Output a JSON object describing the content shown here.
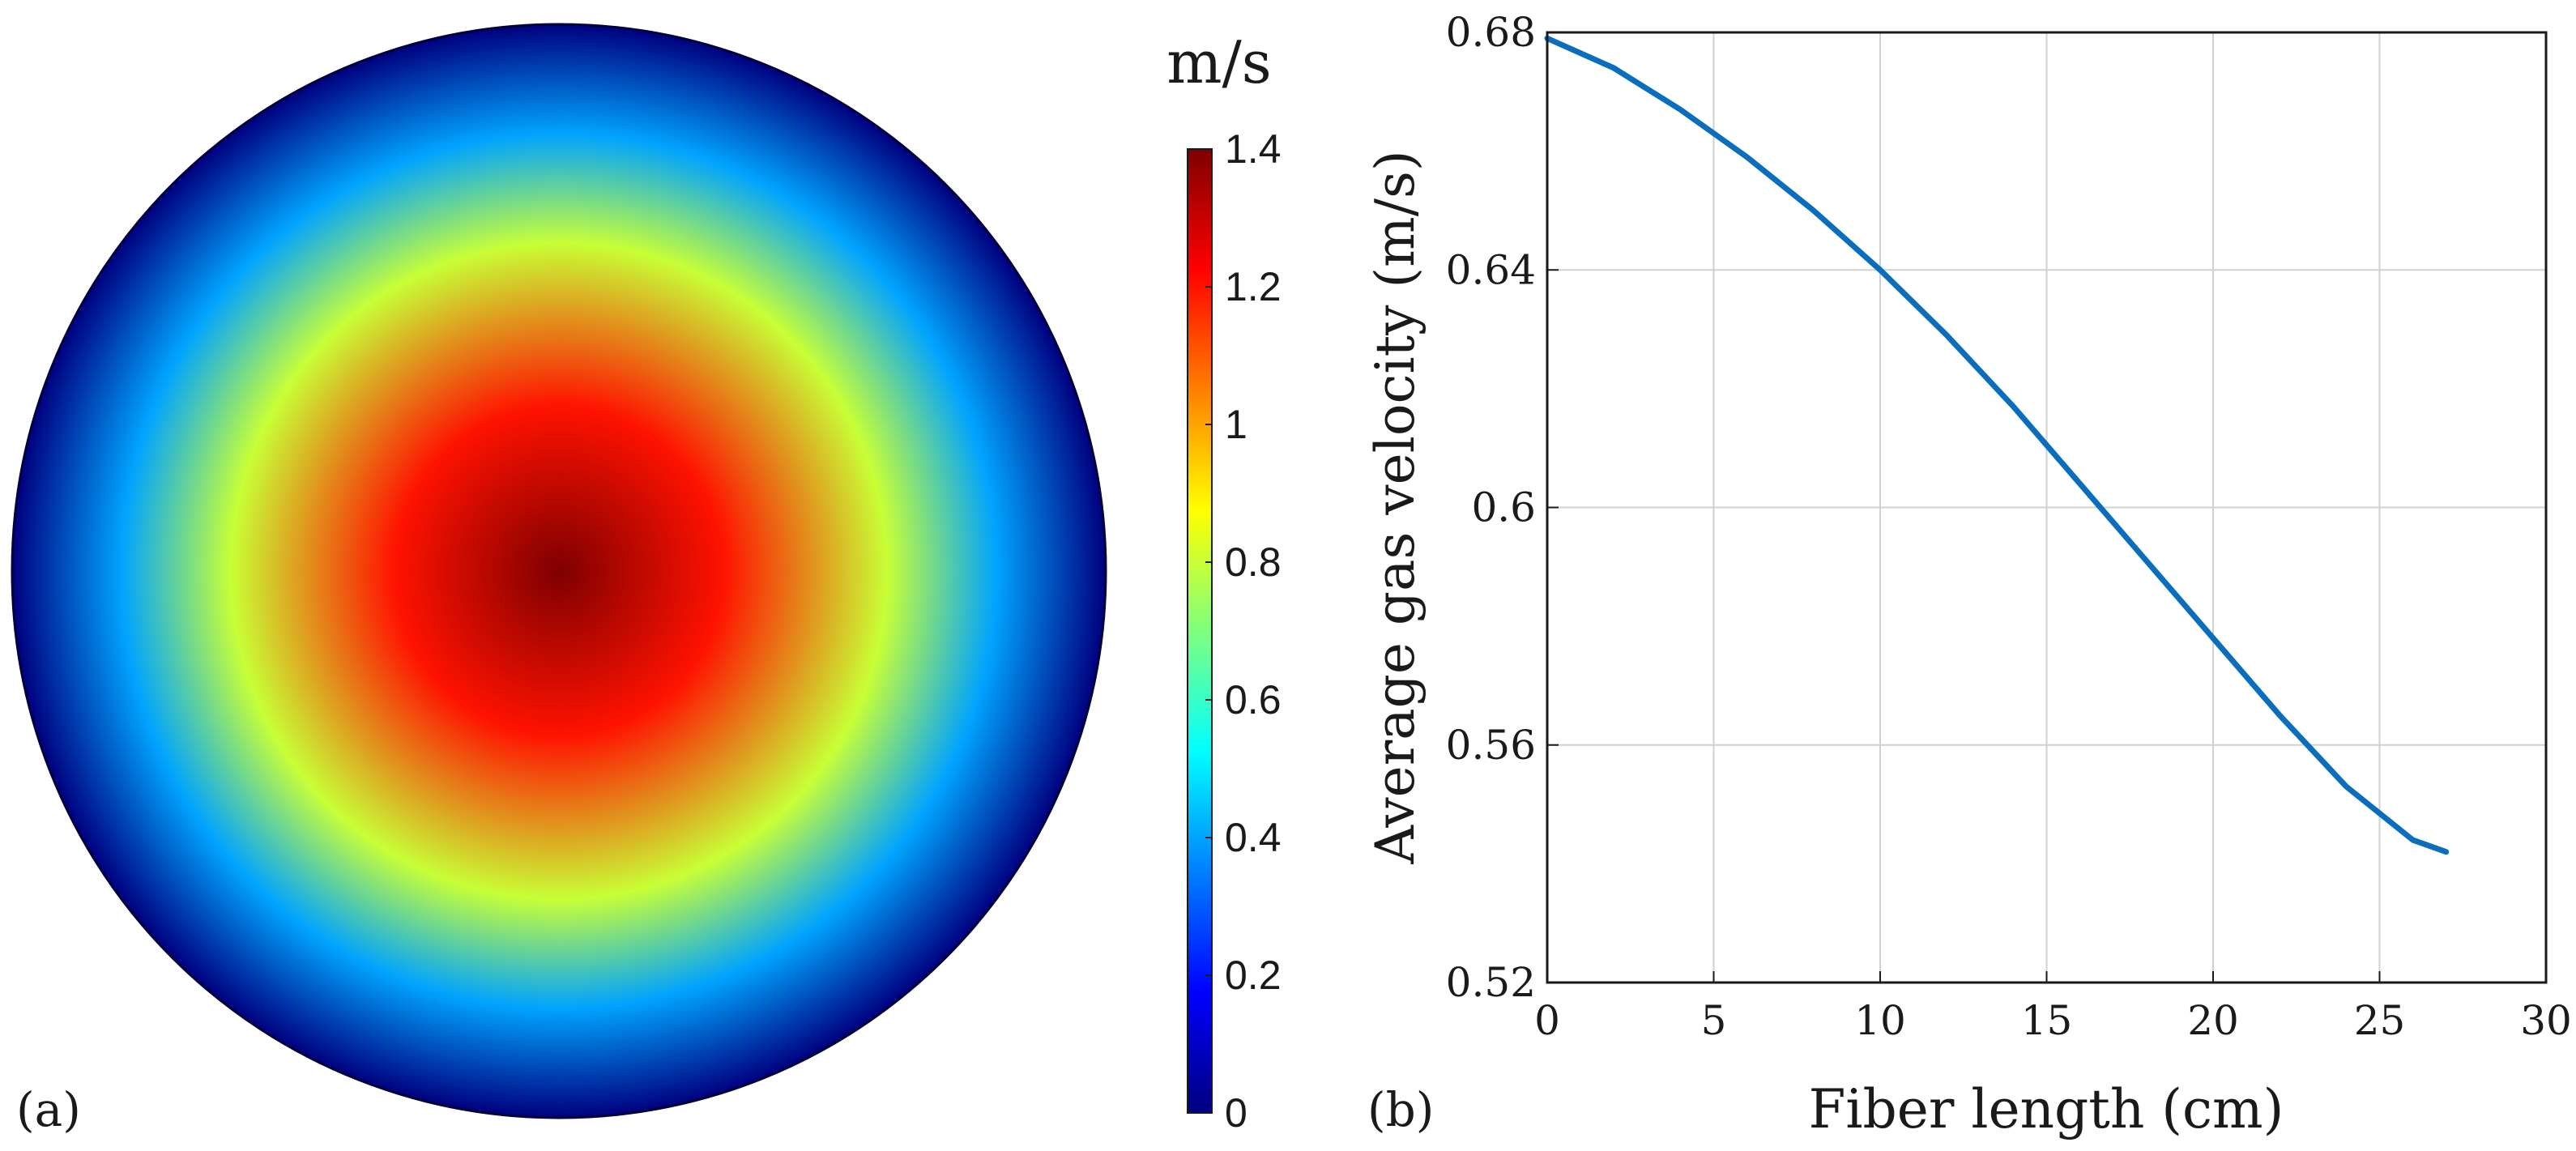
{
  "figure": {
    "panel_a": {
      "label": "(a)",
      "colorbar_unit": "m/s",
      "colorbar_ticks": [
        "1.4",
        "1.2",
        "1",
        "0.8",
        "0.6",
        "0.4",
        "0.2",
        "0"
      ],
      "colormap": [
        "#00007f",
        "#0000ff",
        "#007fff",
        "#00ffff",
        "#7fff7f",
        "#ffff00",
        "#ff7f00",
        "#ff0000",
        "#7f0000"
      ]
    },
    "panel_b": {
      "label": "(b)",
      "line_color": "#0a6ebd"
    }
  },
  "chart_data": [
    {
      "type": "heatmap",
      "title": "",
      "description_unit": "m/s",
      "colorbar_range": [
        0,
        1.4
      ],
      "colorbar_ticks": [
        0,
        0.2,
        0.4,
        0.6,
        0.8,
        1.0,
        1.2,
        1.4
      ],
      "radial_profile": {
        "normalized_radius": [
          0.0,
          0.3,
          0.6,
          0.8,
          1.0
        ],
        "velocity": [
          1.4,
          1.2,
          0.8,
          0.4,
          0.0
        ]
      }
    },
    {
      "type": "line",
      "title": "",
      "xlabel": "Fiber length (cm)",
      "ylabel": "Average gas velocity (m/s)",
      "xlim": [
        0,
        30
      ],
      "ylim": [
        0.52,
        0.68
      ],
      "xticks": [
        "0",
        "5",
        "10",
        "15",
        "20",
        "25",
        "30"
      ],
      "yticks": [
        "0.52",
        "0.56",
        "0.6",
        "0.64",
        "0.68"
      ],
      "grid": true,
      "series": [
        {
          "name": "Average gas velocity",
          "x": [
            0,
            2,
            4,
            6,
            8,
            10,
            12,
            14,
            16,
            18,
            20,
            22,
            24,
            26,
            27
          ],
          "y": [
            0.679,
            0.674,
            0.667,
            0.659,
            0.65,
            0.64,
            0.629,
            0.617,
            0.604,
            0.591,
            0.578,
            0.565,
            0.553,
            0.544,
            0.542
          ]
        }
      ]
    }
  ]
}
